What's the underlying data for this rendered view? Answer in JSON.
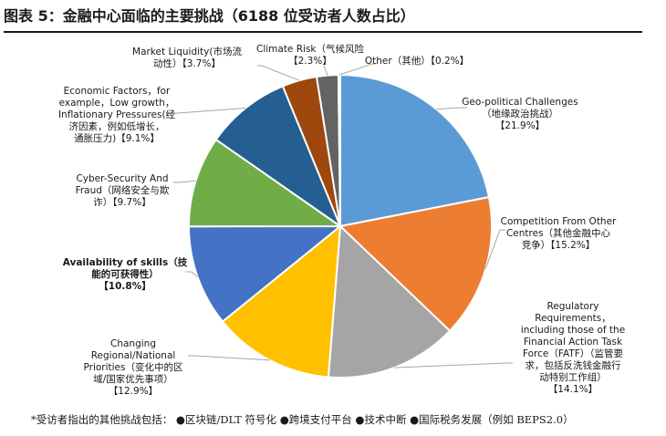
{
  "figure": {
    "title": "图表 5：金融中心面临的主要挑战（6188 位受访者人数占比）",
    "footnote": {
      "prefix": "*受访者指出的其他挑战包括：",
      "items": [
        "●区块链/DLT 符号化",
        "●跨境支付平台",
        "●技术中断",
        "●国际税务发展（例如 BEPS2.0）"
      ]
    }
  },
  "chart_data": {
    "type": "pie",
    "start": "12 o'clock, clockwise",
    "slices": [
      {
        "label_lines": [
          "Geo-political Challenges",
          "（地缘政治挑战）",
          "【21.9%】"
        ],
        "value": 21.9,
        "color": "#5B9BD5"
      },
      {
        "label_lines": [
          "Competition From Other",
          "Centres（其他金融中心",
          "竞争）【15.2%】"
        ],
        "value": 15.2,
        "color": "#ED7D31"
      },
      {
        "label_lines": [
          "Regulatory",
          "Requirements，",
          "including those of the",
          "Financial Action Task",
          "Force（FATF）（监管要",
          "求，包括反洗钱金融行",
          "动特别工作组）",
          "【14.1%】"
        ],
        "value": 14.1,
        "color": "#A5A5A5"
      },
      {
        "label_lines": [
          "Changing",
          "Regional/National",
          "Priorities（变化中的区",
          "域/国家优先事项）",
          "【12.9%】"
        ],
        "value": 12.9,
        "color": "#FFC000"
      },
      {
        "label_lines": [
          "Availability of skills（技",
          "能的可获得性）",
          "【10.8%】"
        ],
        "value": 10.8,
        "color": "#4472C4"
      },
      {
        "label_lines": [
          "Cyber-Security And",
          "Fraud（网络安全与欺",
          "诈）【9.7%】"
        ],
        "value": 9.7,
        "color": "#70AD47"
      },
      {
        "label_lines": [
          "Economic Factors，for",
          "example，Low growth，",
          "Inflationary Pressures(经",
          "济因素，例如低增长，",
          "通胀压力)【9.1%】"
        ],
        "value": 9.1,
        "color": "#255E91"
      },
      {
        "label_lines": [
          "Market Liquidity(市场流",
          "动性）【3.7%】"
        ],
        "value": 3.7,
        "color": "#9E480E"
      },
      {
        "label_lines": [
          "Climate Risk（气候风险",
          "【2.3%】"
        ],
        "value": 2.3,
        "color": "#636363"
      },
      {
        "label_lines": [
          "Other（其他）【0.2%】"
        ],
        "value": 0.2,
        "color": "#997300"
      }
    ]
  }
}
